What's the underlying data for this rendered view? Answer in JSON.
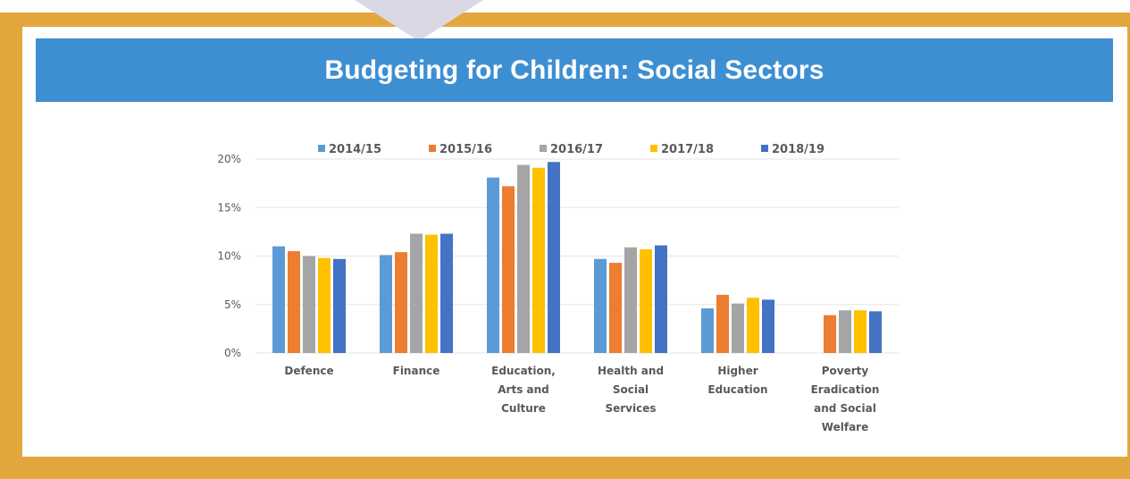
{
  "header": {
    "title": "Budgeting for Children: Social Sectors"
  },
  "colors": {
    "frame": "#e3a63c",
    "banner": "#3d8fd2",
    "banner_text": "#ffffff"
  },
  "chart_data": {
    "type": "bar",
    "title": "",
    "xlabel": "",
    "ylabel": "",
    "ylim": [
      0,
      20
    ],
    "y_ticks": [
      "0%",
      "5%",
      "10%",
      "15%",
      "20%"
    ],
    "y_tick_values": [
      0,
      5,
      10,
      15,
      20
    ],
    "grid": true,
    "legend_position": "top",
    "categories": [
      [
        "Defence"
      ],
      [
        "Finance"
      ],
      [
        "Education,",
        "Arts and",
        "Culture"
      ],
      [
        "Health and",
        "Social",
        "Services"
      ],
      [
        "Higher",
        "Education"
      ],
      [
        "Poverty",
        "Eradication",
        "and Social",
        "Welfare"
      ]
    ],
    "series": [
      {
        "name": "2014/15",
        "color": "#5b9bd5",
        "values": [
          11.0,
          10.1,
          18.1,
          9.7,
          4.6,
          null
        ]
      },
      {
        "name": "2015/16",
        "color": "#ed7d31",
        "values": [
          10.5,
          10.4,
          17.2,
          9.3,
          6.0,
          3.9
        ]
      },
      {
        "name": "2016/17",
        "color": "#a5a5a5",
        "values": [
          10.0,
          12.3,
          19.4,
          10.9,
          5.1,
          4.4
        ]
      },
      {
        "name": "2017/18",
        "color": "#ffc000",
        "values": [
          9.8,
          12.2,
          19.1,
          10.7,
          5.7,
          4.4
        ]
      },
      {
        "name": "2018/19",
        "color": "#4472c4",
        "values": [
          9.7,
          12.3,
          19.7,
          11.1,
          5.5,
          4.3
        ]
      }
    ]
  }
}
